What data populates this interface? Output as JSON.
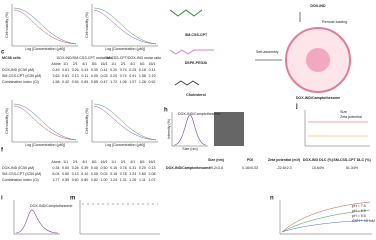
{
  "panel_labels": {
    "c": "c",
    "f": "f",
    "h": "h",
    "i": "i",
    "j": "j",
    "m": "m",
    "n": "n"
  },
  "plots": {
    "x_label": "Log [Concentration (μM)]",
    "y_label": "Cell viability (%)"
  },
  "table_c": {
    "cell_line": "MC38 cells",
    "group1": "DOX-IND/SM-CSS-CPT molar ratio",
    "group2": "SM-CSS-CPT/DOX-IND molar ratio",
    "header": [
      "Alone",
      "1/1",
      "2/1",
      "4/1",
      "8/1",
      "16/1",
      "1/1",
      "2/1",
      "4/1",
      "8/1",
      "16/1"
    ],
    "rows": [
      {
        "label": "DOX-IND (IC50 μM)",
        "cells": [
          "0.49",
          "0.61",
          "0.26",
          "0.43",
          "0.39",
          "0.41",
          "0.20",
          "0.74",
          "0.25",
          "0.18",
          "0.11"
        ]
      },
      {
        "label": "SM-CSS-CPT (IC50 μM)",
        "cells": [
          "3.63",
          "0.61",
          "0.13",
          "0.11",
          "0.05",
          "0.03",
          "0.20",
          "0.74",
          "0.91",
          "1.58",
          "2.19"
        ]
      },
      {
        "label": "Combination index (CI)",
        "cells": [
          "1.58",
          "0.42",
          "0.54",
          "0.65",
          "0.85",
          "0.47",
          "1.72",
          "1.06",
          "1.07",
          "1.26",
          "0.92"
        ]
      }
    ]
  },
  "table_f": {
    "header": [
      "Alone",
      "1/1",
      "2/1",
      "4/1",
      "8/1",
      "16/1",
      "1/1",
      "2/1",
      "4/1",
      "8/1",
      "16/1"
    ],
    "rows": [
      {
        "label": "DOX-IND (IC50 μM)",
        "cells": [
          "0.34",
          "0.60",
          "0.26",
          "0.39",
          "0.40",
          "0.50",
          "0.16",
          "0.78",
          "0.31",
          "0.20",
          "0.13"
        ]
      },
      {
        "label": "SM-CSS-CPT (IC50 μM)",
        "cells": [
          "6.04",
          "0.60",
          "0.13",
          "0.10",
          "0.05",
          "0.03",
          "0.16",
          "0.78",
          "1.24",
          "1.60",
          "2.08"
        ]
      },
      {
        "label": "Combination index (CI)",
        "cells": [
          "1.77",
          "0.55",
          "0.60",
          "0.80",
          "0.82",
          "1.00",
          "1.24",
          "1.31",
          "1.26",
          "1.11",
          "1.07"
        ]
      }
    ]
  },
  "scheme": {
    "cpt": "SM-CSS-CPT",
    "dspe": "DSPE-PEG2k",
    "chol": "Cholesterol",
    "dox": "DOX-IND",
    "remote": "Remote loading",
    "self": "Self-assembly",
    "product": "DOX-IND/Camptothesome"
  },
  "panel_h": {
    "legend": "DOX-IND/Camptothesome",
    "x_label": "Size (nm)",
    "y_label": "Intensity (%)"
  },
  "panel_j": {
    "legend": [
      "Size",
      "Zeta potential"
    ]
  },
  "table_h": {
    "header": [
      "Size (nm)",
      "PDI",
      "Zeta potential (mV)",
      "DOX-IND DLC (%)",
      "SM-CSS-CPT DLC (%)"
    ],
    "row_label": "DOX-IND/Camptothesome",
    "cells": [
      "99.2±3.8",
      "0.16±0.03",
      "-22.6±2.3",
      "10.64%",
      "51.34%"
    ]
  },
  "panel_i": {
    "legend": "DOX-IND/Camptothesome"
  },
  "panel_n": {
    "legend": [
      "pH = 7.4",
      "pH = 6.5",
      "pH = 5.5",
      "GSH + 10 mM"
    ]
  }
}
